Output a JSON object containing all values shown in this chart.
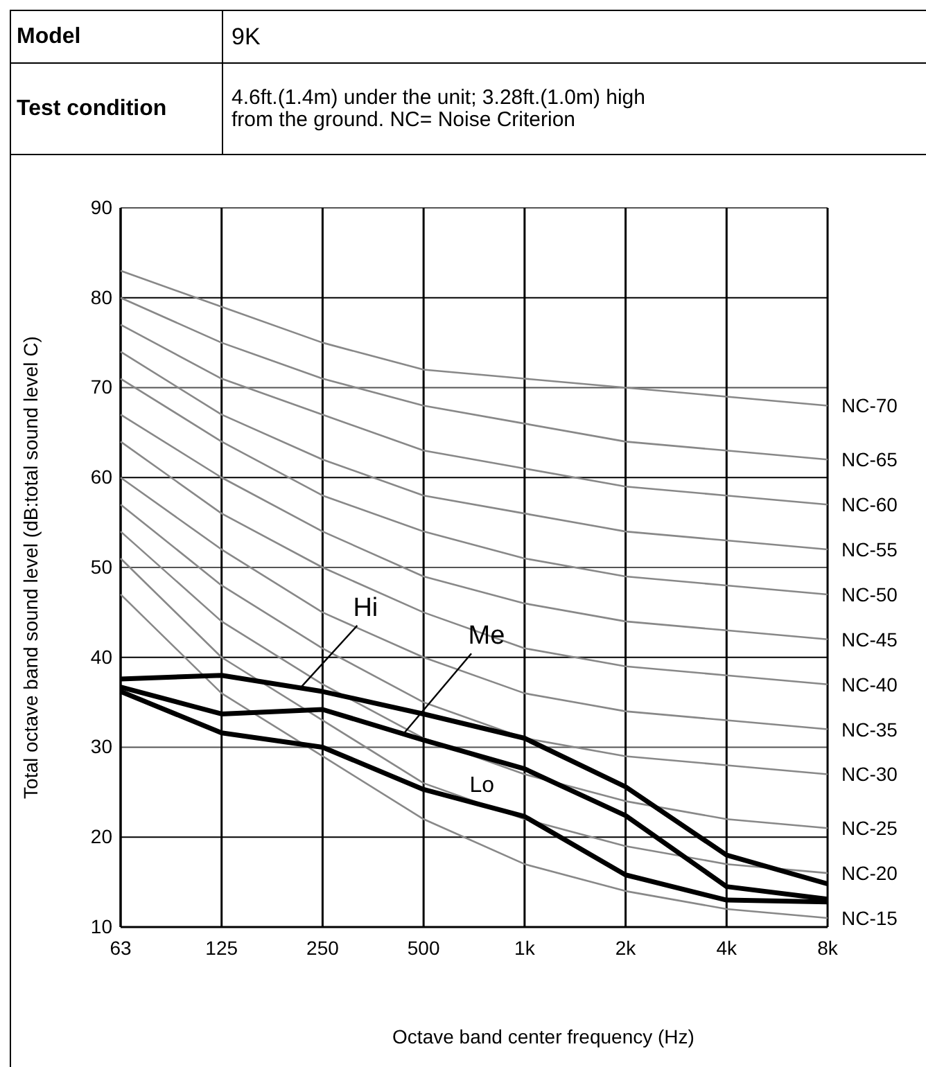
{
  "chart_data": {
    "type": "line",
    "annotations": [
      "Model",
      "9K",
      "Test condition",
      "4.6ft.(1.4m) under the unit; 3.28ft.(1.0m) high from the ground. NC= Noise Criterion"
    ],
    "xlabel": "Octave band center frequency (Hz)",
    "ylabel": "Total octave band sound level (dB:total sound level C)",
    "categories": [
      "63",
      "125",
      "250",
      "500",
      "1k",
      "2k",
      "4k",
      "8k"
    ],
    "ylim": [
      10,
      90
    ],
    "yticks": [
      10,
      20,
      30,
      40,
      50,
      60,
      70,
      80,
      90
    ],
    "grid": true,
    "legend": false,
    "marker": "none",
    "line_style": "solid",
    "series": [
      {
        "name": "NC-15",
        "color": "#888888",
        "values": [
          47,
          36,
          29,
          22,
          17,
          14,
          12,
          11
        ]
      },
      {
        "name": "NC-20",
        "color": "#888888",
        "values": [
          51,
          40,
          33,
          26,
          22,
          19,
          17,
          16
        ]
      },
      {
        "name": "NC-25",
        "color": "#888888",
        "values": [
          54,
          44,
          37,
          31,
          27,
          24,
          22,
          21
        ]
      },
      {
        "name": "NC-30",
        "color": "#888888",
        "values": [
          57,
          48,
          41,
          35,
          31,
          29,
          28,
          27
        ]
      },
      {
        "name": "NC-35",
        "color": "#888888",
        "values": [
          60,
          52,
          45,
          40,
          36,
          34,
          33,
          32
        ]
      },
      {
        "name": "NC-40",
        "color": "#888888",
        "values": [
          64,
          56,
          50,
          45,
          41,
          39,
          38,
          37
        ]
      },
      {
        "name": "NC-45",
        "color": "#888888",
        "values": [
          67,
          60,
          54,
          49,
          46,
          44,
          43,
          42
        ]
      },
      {
        "name": "NC-50",
        "color": "#888888",
        "values": [
          71,
          64,
          58,
          54,
          51,
          49,
          48,
          47
        ]
      },
      {
        "name": "NC-55",
        "color": "#888888",
        "values": [
          74,
          67,
          62,
          58,
          56,
          54,
          53,
          52
        ]
      },
      {
        "name": "NC-60",
        "color": "#888888",
        "values": [
          77,
          71,
          67,
          63,
          61,
          59,
          58,
          57
        ]
      },
      {
        "name": "NC-65",
        "color": "#888888",
        "values": [
          80,
          75,
          71,
          68,
          66,
          64,
          63,
          62
        ]
      },
      {
        "name": "NC-70",
        "color": "#888888",
        "values": [
          83,
          79,
          75,
          72,
          71,
          70,
          69,
          68
        ]
      },
      {
        "name": "Hi",
        "color": "#000000",
        "values": [
          37.6,
          38,
          36.2,
          33.7,
          31,
          25.6,
          18,
          14.8
        ]
      },
      {
        "name": "Me",
        "color": "#000000",
        "values": [
          36.7,
          33.7,
          34.2,
          30.8,
          27.6,
          22.4,
          14.5,
          13.1
        ]
      },
      {
        "name": "Lo",
        "color": "#000000",
        "values": [
          36.2,
          31.6,
          30,
          25.3,
          22.3,
          15.8,
          13,
          12.8
        ]
      }
    ]
  }
}
